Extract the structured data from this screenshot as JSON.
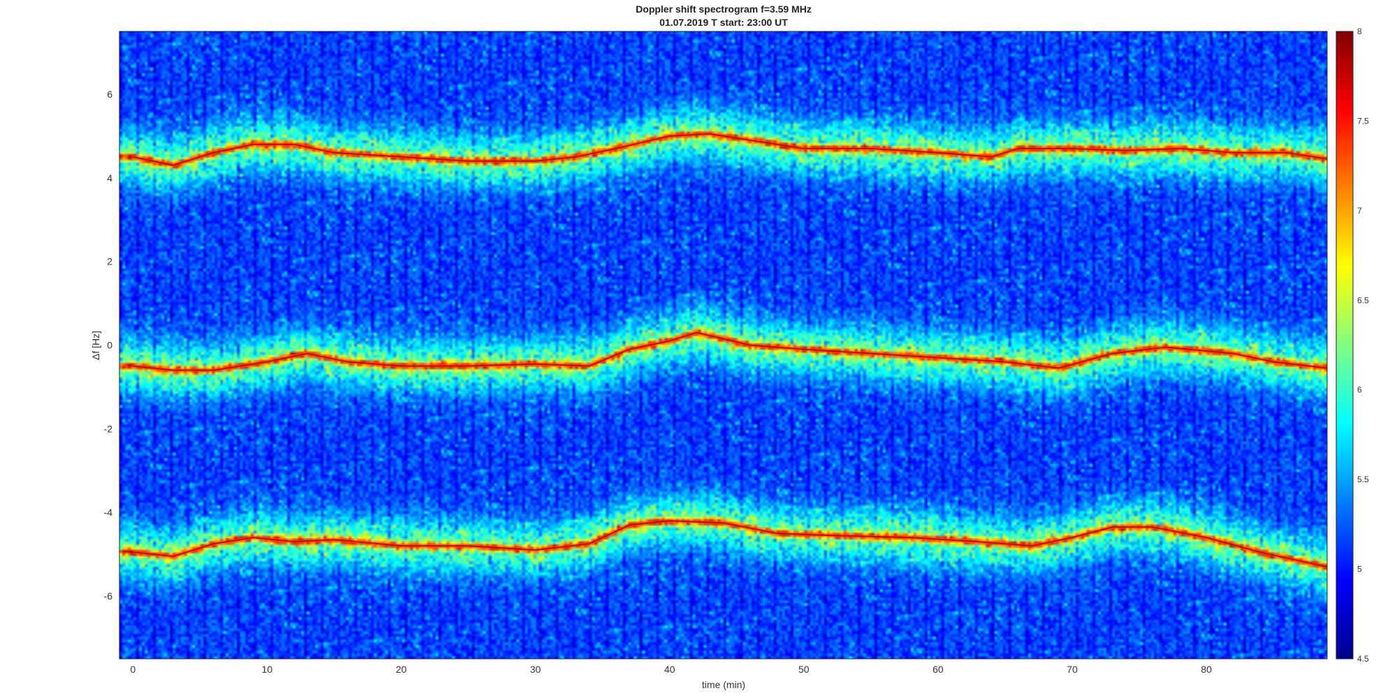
{
  "chart_data": {
    "type": "heatmap",
    "title": "Doppler shift spectrogram f=3.59 MHz",
    "subtitle": "01.07.2019   T start: 23:00 UT",
    "xlabel": "time (min)",
    "ylabel": "Δf [Hz]",
    "xlim": [
      -1,
      89
    ],
    "ylim": [
      -7.5,
      7.5
    ],
    "xticks": [
      "0",
      "10",
      "20",
      "30",
      "40",
      "50",
      "60",
      "70",
      "80"
    ],
    "yticks": [
      "6",
      "4",
      "2",
      "0",
      "-2",
      "-4",
      "-6"
    ],
    "colorbar": {
      "colormap": "jet",
      "clim": [
        4.5,
        8
      ],
      "ticks": [
        "8",
        "7.5",
        "7",
        "6.5",
        "6",
        "5.5",
        "5",
        "4.5"
      ]
    },
    "series": [
      {
        "x": [
          0,
          3,
          6,
          9,
          12,
          15,
          20,
          25,
          30,
          33,
          36,
          40,
          43,
          46,
          50,
          55,
          60,
          64,
          66,
          70,
          74,
          78,
          82,
          86,
          89
        ],
        "values": [
          4.5,
          4.3,
          4.6,
          4.8,
          4.8,
          4.6,
          4.5,
          4.4,
          4.4,
          4.5,
          4.7,
          5.0,
          5.05,
          4.9,
          4.7,
          4.7,
          4.6,
          4.5,
          4.7,
          4.7,
          4.65,
          4.7,
          4.6,
          4.6,
          4.45
        ]
      },
      {
        "x": [
          0,
          3,
          6,
          10,
          13,
          16,
          20,
          25,
          30,
          34,
          37,
          40,
          42,
          46,
          50,
          55,
          60,
          65,
          69,
          73,
          77,
          82,
          85,
          89
        ],
        "values": [
          -0.5,
          -0.6,
          -0.6,
          -0.4,
          -0.2,
          -0.4,
          -0.5,
          -0.5,
          -0.45,
          -0.5,
          -0.1,
          0.1,
          0.3,
          0.0,
          -0.1,
          -0.2,
          -0.3,
          -0.4,
          -0.55,
          -0.2,
          -0.05,
          -0.2,
          -0.4,
          -0.55
        ]
      },
      {
        "x": [
          0,
          3,
          6,
          9,
          12,
          15,
          20,
          25,
          30,
          34,
          37,
          40,
          44,
          48,
          52,
          58,
          63,
          67,
          70,
          73,
          76,
          80,
          84,
          89
        ],
        "values": [
          -4.95,
          -5.05,
          -4.75,
          -4.6,
          -4.7,
          -4.65,
          -4.8,
          -4.8,
          -4.9,
          -4.75,
          -4.3,
          -4.2,
          -4.25,
          -4.5,
          -4.55,
          -4.6,
          -4.7,
          -4.8,
          -4.6,
          -4.35,
          -4.35,
          -4.6,
          -4.95,
          -5.3
        ]
      }
    ],
    "bands": [
      {
        "center": 4.6,
        "intensity_peak": 7.6
      },
      {
        "center": -0.3,
        "intensity_peak": 7.9
      },
      {
        "center": -4.6,
        "intensity_peak": 7.6
      }
    ]
  }
}
